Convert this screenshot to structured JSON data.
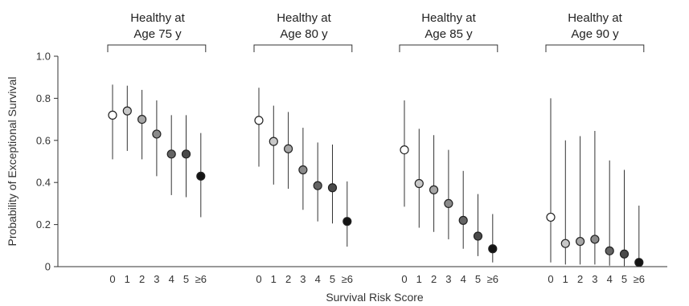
{
  "chart_data": {
    "type": "scatter",
    "ylabel": "Probability of Exceptional Survival",
    "xlabel": "Survival Risk Score",
    "ylim": [
      0,
      1.0
    ],
    "yticks": [
      "0",
      "0.2",
      "0.4",
      "0.6",
      "0.8",
      "1.0"
    ],
    "categories": [
      "0",
      "1",
      "2",
      "3",
      "4",
      "5",
      "≥6"
    ],
    "category_colors": [
      "#ffffff",
      "#c8c8c8",
      "#a6a6a6",
      "#8a8a8a",
      "#646464",
      "#4a4a4a",
      "#141414"
    ],
    "groups": [
      {
        "title_line1": "Healthy at",
        "title_line2": "Age 75 y",
        "values": [
          0.72,
          0.74,
          0.7,
          0.63,
          0.535,
          0.535,
          0.43
        ],
        "lower": [
          0.51,
          0.55,
          0.51,
          0.43,
          0.34,
          0.33,
          0.235
        ],
        "upper": [
          0.865,
          0.86,
          0.84,
          0.79,
          0.72,
          0.72,
          0.635
        ]
      },
      {
        "title_line1": "Healthy at",
        "title_line2": "Age 80 y",
        "values": [
          0.695,
          0.595,
          0.56,
          0.46,
          0.385,
          0.375,
          0.215
        ],
        "lower": [
          0.475,
          0.39,
          0.37,
          0.27,
          0.215,
          0.205,
          0.095
        ],
        "upper": [
          0.85,
          0.765,
          0.735,
          0.66,
          0.59,
          0.58,
          0.405
        ]
      },
      {
        "title_line1": "Healthy at",
        "title_line2": "Age 85 y",
        "values": [
          0.555,
          0.395,
          0.365,
          0.3,
          0.22,
          0.145,
          0.085
        ],
        "lower": [
          0.285,
          0.185,
          0.165,
          0.13,
          0.085,
          0.05,
          0.02
        ],
        "upper": [
          0.79,
          0.655,
          0.625,
          0.555,
          0.455,
          0.345,
          0.25
        ]
      },
      {
        "title_line1": "Healthy at",
        "title_line2": "Age 90 y",
        "values": [
          0.235,
          0.11,
          0.12,
          0.13,
          0.075,
          0.06,
          0.02
        ],
        "lower": [
          0.02,
          0.01,
          0.01,
          0.01,
          0.005,
          0.003,
          0.002
        ],
        "upper": [
          0.8,
          0.6,
          0.62,
          0.645,
          0.505,
          0.46,
          0.29
        ]
      }
    ]
  }
}
